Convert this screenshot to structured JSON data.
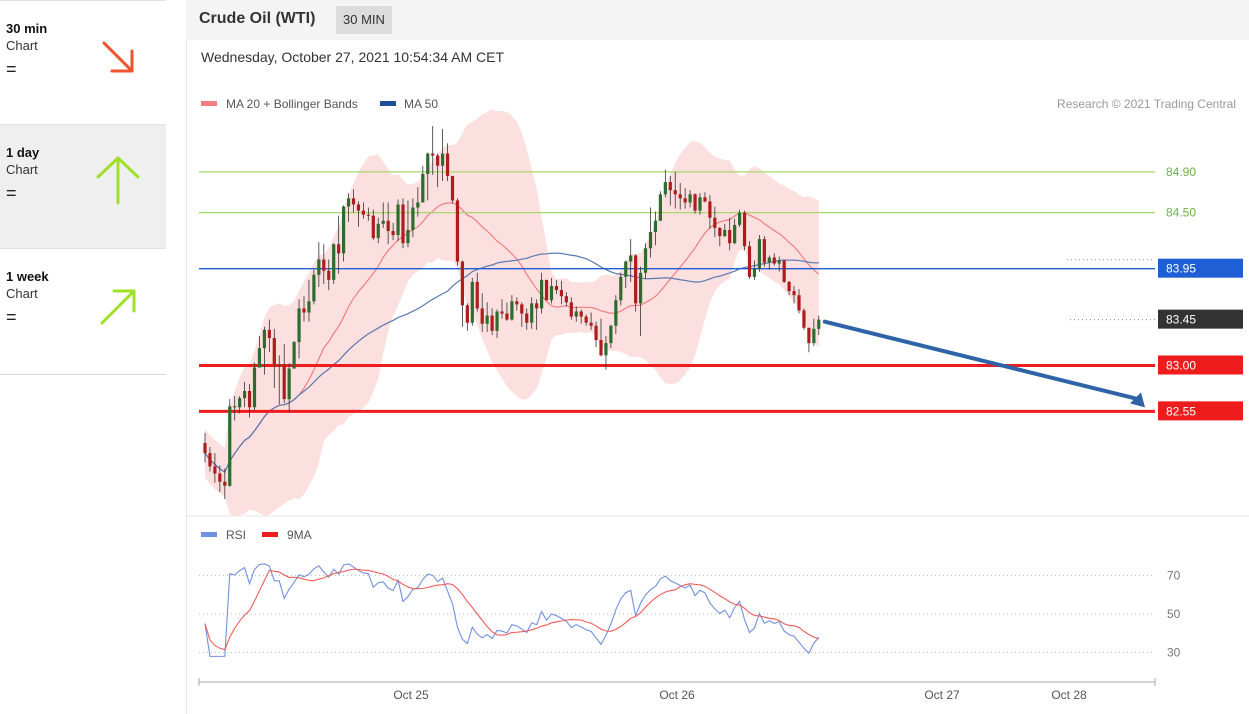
{
  "sidebar": {
    "items": [
      {
        "label": "30 min",
        "sub": "Chart",
        "status": "=",
        "arrow": "down-right",
        "color": "#f0522d"
      },
      {
        "label": "1 day",
        "sub": "Chart",
        "status": "=",
        "arrow": "up",
        "color": "#9fe02a"
      },
      {
        "label": "1 week",
        "sub": "Chart",
        "status": "=",
        "arrow": "up-right",
        "color": "#9fe02a"
      }
    ]
  },
  "header": {
    "instrument": "Crude Oil (WTI)",
    "timeframe": "30 MIN"
  },
  "datetime": "Wednesday, October 27, 2021 10:54:34 AM CET",
  "legend": {
    "ma20": "MA 20 + Bollinger Bands",
    "ma50": "MA 50",
    "credit": "Research © 2021 Trading Central"
  },
  "rsi_legend": {
    "rsi": "RSI",
    "ma": "9MA"
  },
  "colors": {
    "ma20": "#f08080",
    "ma50": "#5a78b0",
    "band": "#fcd9d9",
    "bull": "#2e6b2e",
    "bear": "#b01c1c",
    "support": "#ee1c1c",
    "resistance": "#a6d96a",
    "pivot": "#1f5fd6",
    "forecast_arrow": "#2f63a8",
    "rsi": "#7190e0",
    "rsi_ma": "#f05a5a"
  },
  "chart_data": [
    {
      "type": "candlestick",
      "title": "Crude Oil (WTI)",
      "x_ticks": [
        "Oct 25",
        "Oct 26",
        "Oct 27",
        "Oct 28"
      ],
      "ylim": [
        81.7,
        85.35
      ],
      "levels": [
        {
          "value": 84.9,
          "label": "84.90",
          "kind": "resistance"
        },
        {
          "value": 84.5,
          "label": "84.50",
          "kind": "resistance"
        },
        {
          "value": 83.95,
          "label": "83.95",
          "kind": "pivot"
        },
        {
          "value": 83.0,
          "label": "83.00",
          "kind": "support"
        },
        {
          "value": 82.55,
          "label": "82.55",
          "kind": "support"
        }
      ],
      "last_price": {
        "value": 83.45,
        "label": "83.45"
      },
      "forecast": {
        "from": 83.45,
        "to": 82.55
      },
      "candles": [
        [
          82.24,
          82.34,
          82.05,
          82.14
        ],
        [
          82.14,
          82.2,
          81.96,
          82.01
        ],
        [
          82.01,
          82.14,
          81.85,
          81.94
        ],
        [
          81.94,
          82.02,
          81.76,
          81.86
        ],
        [
          81.86,
          81.99,
          81.69,
          81.82
        ],
        [
          81.82,
          82.67,
          81.81,
          82.6
        ],
        [
          82.6,
          82.7,
          82.46,
          82.59
        ],
        [
          82.59,
          82.7,
          82.53,
          82.68
        ],
        [
          82.68,
          82.84,
          82.59,
          82.75
        ],
        [
          82.75,
          82.82,
          82.49,
          82.59
        ],
        [
          82.59,
          83.03,
          82.56,
          82.98
        ],
        [
          82.98,
          83.29,
          82.98,
          83.17
        ],
        [
          83.17,
          83.38,
          82.91,
          83.35
        ],
        [
          83.35,
          83.45,
          83.13,
          83.27
        ],
        [
          83.27,
          83.36,
          82.78,
          83.01
        ],
        [
          83.01,
          83.1,
          82.62,
          83.01
        ],
        [
          83.01,
          83.21,
          82.63,
          82.67
        ],
        [
          82.67,
          83.02,
          82.54,
          82.97
        ],
        [
          82.97,
          83.24,
          82.97,
          83.23
        ],
        [
          83.23,
          83.65,
          83.07,
          83.56
        ],
        [
          83.56,
          83.68,
          83.43,
          83.52
        ],
        [
          83.52,
          83.84,
          83.43,
          83.63
        ],
        [
          83.63,
          83.94,
          83.6,
          83.89
        ],
        [
          83.89,
          84.21,
          83.77,
          84.04
        ],
        [
          84.04,
          84.19,
          83.8,
          83.93
        ],
        [
          83.93,
          84.04,
          83.74,
          83.84
        ],
        [
          83.84,
          84.2,
          83.8,
          84.19
        ],
        [
          84.19,
          84.47,
          83.9,
          84.1
        ],
        [
          84.1,
          84.57,
          84.02,
          84.56
        ],
        [
          84.56,
          84.69,
          84.41,
          84.64
        ],
        [
          84.64,
          84.73,
          84.5,
          84.58
        ],
        [
          84.58,
          84.61,
          84.36,
          84.52
        ],
        [
          84.52,
          84.6,
          84.44,
          84.48
        ],
        [
          84.48,
          84.55,
          84.42,
          84.47
        ],
        [
          84.47,
          84.53,
          84.23,
          84.25
        ],
        [
          84.25,
          84.45,
          84.2,
          84.39
        ],
        [
          84.39,
          84.6,
          84.35,
          84.42
        ],
        [
          84.42,
          84.6,
          84.19,
          84.32
        ],
        [
          84.32,
          84.4,
          84.23,
          84.28
        ],
        [
          84.28,
          84.63,
          84.22,
          84.58
        ],
        [
          84.58,
          84.64,
          84.15,
          84.2
        ],
        [
          84.2,
          84.62,
          84.16,
          84.33
        ],
        [
          84.33,
          84.64,
          84.26,
          84.55
        ],
        [
          84.55,
          84.75,
          84.46,
          84.6
        ],
        [
          84.6,
          84.96,
          84.6,
          84.88
        ],
        [
          84.88,
          85.09,
          84.62,
          85.08
        ],
        [
          85.08,
          85.35,
          84.87,
          85.06
        ],
        [
          85.06,
          85.08,
          84.75,
          84.96
        ],
        [
          84.96,
          85.32,
          84.81,
          85.08
        ],
        [
          85.08,
          85.18,
          84.81,
          84.86
        ],
        [
          84.86,
          84.86,
          84.59,
          84.62
        ],
        [
          84.62,
          84.64,
          83.98,
          84.02
        ],
        [
          84.02,
          84.03,
          83.38,
          83.59
        ],
        [
          83.59,
          83.61,
          83.34,
          83.42
        ],
        [
          83.42,
          83.86,
          83.39,
          83.82
        ],
        [
          83.82,
          83.91,
          83.53,
          83.56
        ],
        [
          83.56,
          83.71,
          83.33,
          83.41
        ],
        [
          83.41,
          83.62,
          83.33,
          83.49
        ],
        [
          83.49,
          83.56,
          83.3,
          83.34
        ],
        [
          83.34,
          83.55,
          83.27,
          83.53
        ],
        [
          83.53,
          83.65,
          83.46,
          83.51
        ],
        [
          83.51,
          83.62,
          83.44,
          83.45
        ],
        [
          83.45,
          83.69,
          83.44,
          83.63
        ],
        [
          83.63,
          83.67,
          83.54,
          83.6
        ],
        [
          83.6,
          83.62,
          83.38,
          83.51
        ],
        [
          83.51,
          83.56,
          83.35,
          83.42
        ],
        [
          83.42,
          83.67,
          83.36,
          83.61
        ],
        [
          83.61,
          83.65,
          83.35,
          83.56
        ],
        [
          83.56,
          83.91,
          83.51,
          83.84
        ],
        [
          83.84,
          83.84,
          83.64,
          83.64
        ],
        [
          83.64,
          83.86,
          83.61,
          83.78
        ],
        [
          83.78,
          83.84,
          83.7,
          83.74
        ],
        [
          83.74,
          83.83,
          83.6,
          83.68
        ],
        [
          83.68,
          83.72,
          83.58,
          83.62
        ],
        [
          83.62,
          83.67,
          83.45,
          83.48
        ],
        [
          83.48,
          83.58,
          83.43,
          83.53
        ],
        [
          83.53,
          83.55,
          83.41,
          83.48
        ],
        [
          83.48,
          83.5,
          83.39,
          83.42
        ],
        [
          83.42,
          83.52,
          83.35,
          83.39
        ],
        [
          83.39,
          83.43,
          83.18,
          83.25
        ],
        [
          83.25,
          83.46,
          83.09,
          83.1
        ],
        [
          83.1,
          83.29,
          82.96,
          83.22
        ],
        [
          83.22,
          83.4,
          83.17,
          83.39
        ],
        [
          83.39,
          83.69,
          83.31,
          83.64
        ],
        [
          83.64,
          83.91,
          83.59,
          83.87
        ],
        [
          83.87,
          84.03,
          83.76,
          84.02
        ],
        [
          84.02,
          84.24,
          83.82,
          84.08
        ],
        [
          84.08,
          84.09,
          83.53,
          83.61
        ],
        [
          83.61,
          83.97,
          83.29,
          83.91
        ],
        [
          83.91,
          84.2,
          83.85,
          84.15
        ],
        [
          84.15,
          84.55,
          84.06,
          84.31
        ],
        [
          84.31,
          84.51,
          84.18,
          84.42
        ],
        [
          84.42,
          84.71,
          84.42,
          84.68
        ],
        [
          84.68,
          84.92,
          84.65,
          84.8
        ],
        [
          84.8,
          84.86,
          84.57,
          84.72
        ],
        [
          84.72,
          84.9,
          84.54,
          84.68
        ],
        [
          84.68,
          84.79,
          84.53,
          84.64
        ],
        [
          84.64,
          84.74,
          84.54,
          84.6
        ],
        [
          84.6,
          84.72,
          84.55,
          84.68
        ],
        [
          84.68,
          84.69,
          84.49,
          84.52
        ],
        [
          84.52,
          84.69,
          84.48,
          84.65
        ],
        [
          84.65,
          84.7,
          84.6,
          84.61
        ],
        [
          84.61,
          84.67,
          84.34,
          84.45
        ],
        [
          84.45,
          84.56,
          84.26,
          84.35
        ],
        [
          84.35,
          84.36,
          84.17,
          84.27
        ],
        [
          84.27,
          84.39,
          84.26,
          84.33
        ],
        [
          84.33,
          84.45,
          84.13,
          84.2
        ],
        [
          84.2,
          84.44,
          84.19,
          84.38
        ],
        [
          84.38,
          84.53,
          84.36,
          84.5
        ],
        [
          84.5,
          84.52,
          84.13,
          84.17
        ],
        [
          84.17,
          84.22,
          83.85,
          83.87
        ],
        [
          83.87,
          84.03,
          83.84,
          83.95
        ],
        [
          83.95,
          84.28,
          83.92,
          84.24
        ],
        [
          84.24,
          84.27,
          83.97,
          84.01
        ],
        [
          84.01,
          84.08,
          83.94,
          84.06
        ],
        [
          84.06,
          84.1,
          83.98,
          84
        ],
        [
          84,
          84.07,
          83.92,
          84.03
        ],
        [
          84.03,
          84.03,
          83.81,
          83.82
        ],
        [
          83.82,
          83.83,
          83.69,
          83.73
        ],
        [
          83.73,
          83.78,
          83.61,
          83.69
        ],
        [
          83.69,
          83.75,
          83.51,
          83.54
        ],
        [
          83.54,
          83.56,
          83.35,
          83.37
        ],
        [
          83.37,
          83.37,
          83.13,
          83.22
        ],
        [
          83.22,
          83.46,
          83.19,
          83.36
        ],
        [
          83.36,
          83.49,
          83.3,
          83.45
        ]
      ]
    },
    {
      "type": "line",
      "title": "RSI",
      "series": [
        {
          "name": "RSI"
        },
        {
          "name": "9MA"
        }
      ],
      "ylim": [
        23,
        78
      ],
      "y_ticks": [
        30,
        50,
        70
      ],
      "x_ticks": [
        "Oct 25",
        "Oct 26",
        "Oct 27",
        "Oct 28"
      ]
    }
  ]
}
